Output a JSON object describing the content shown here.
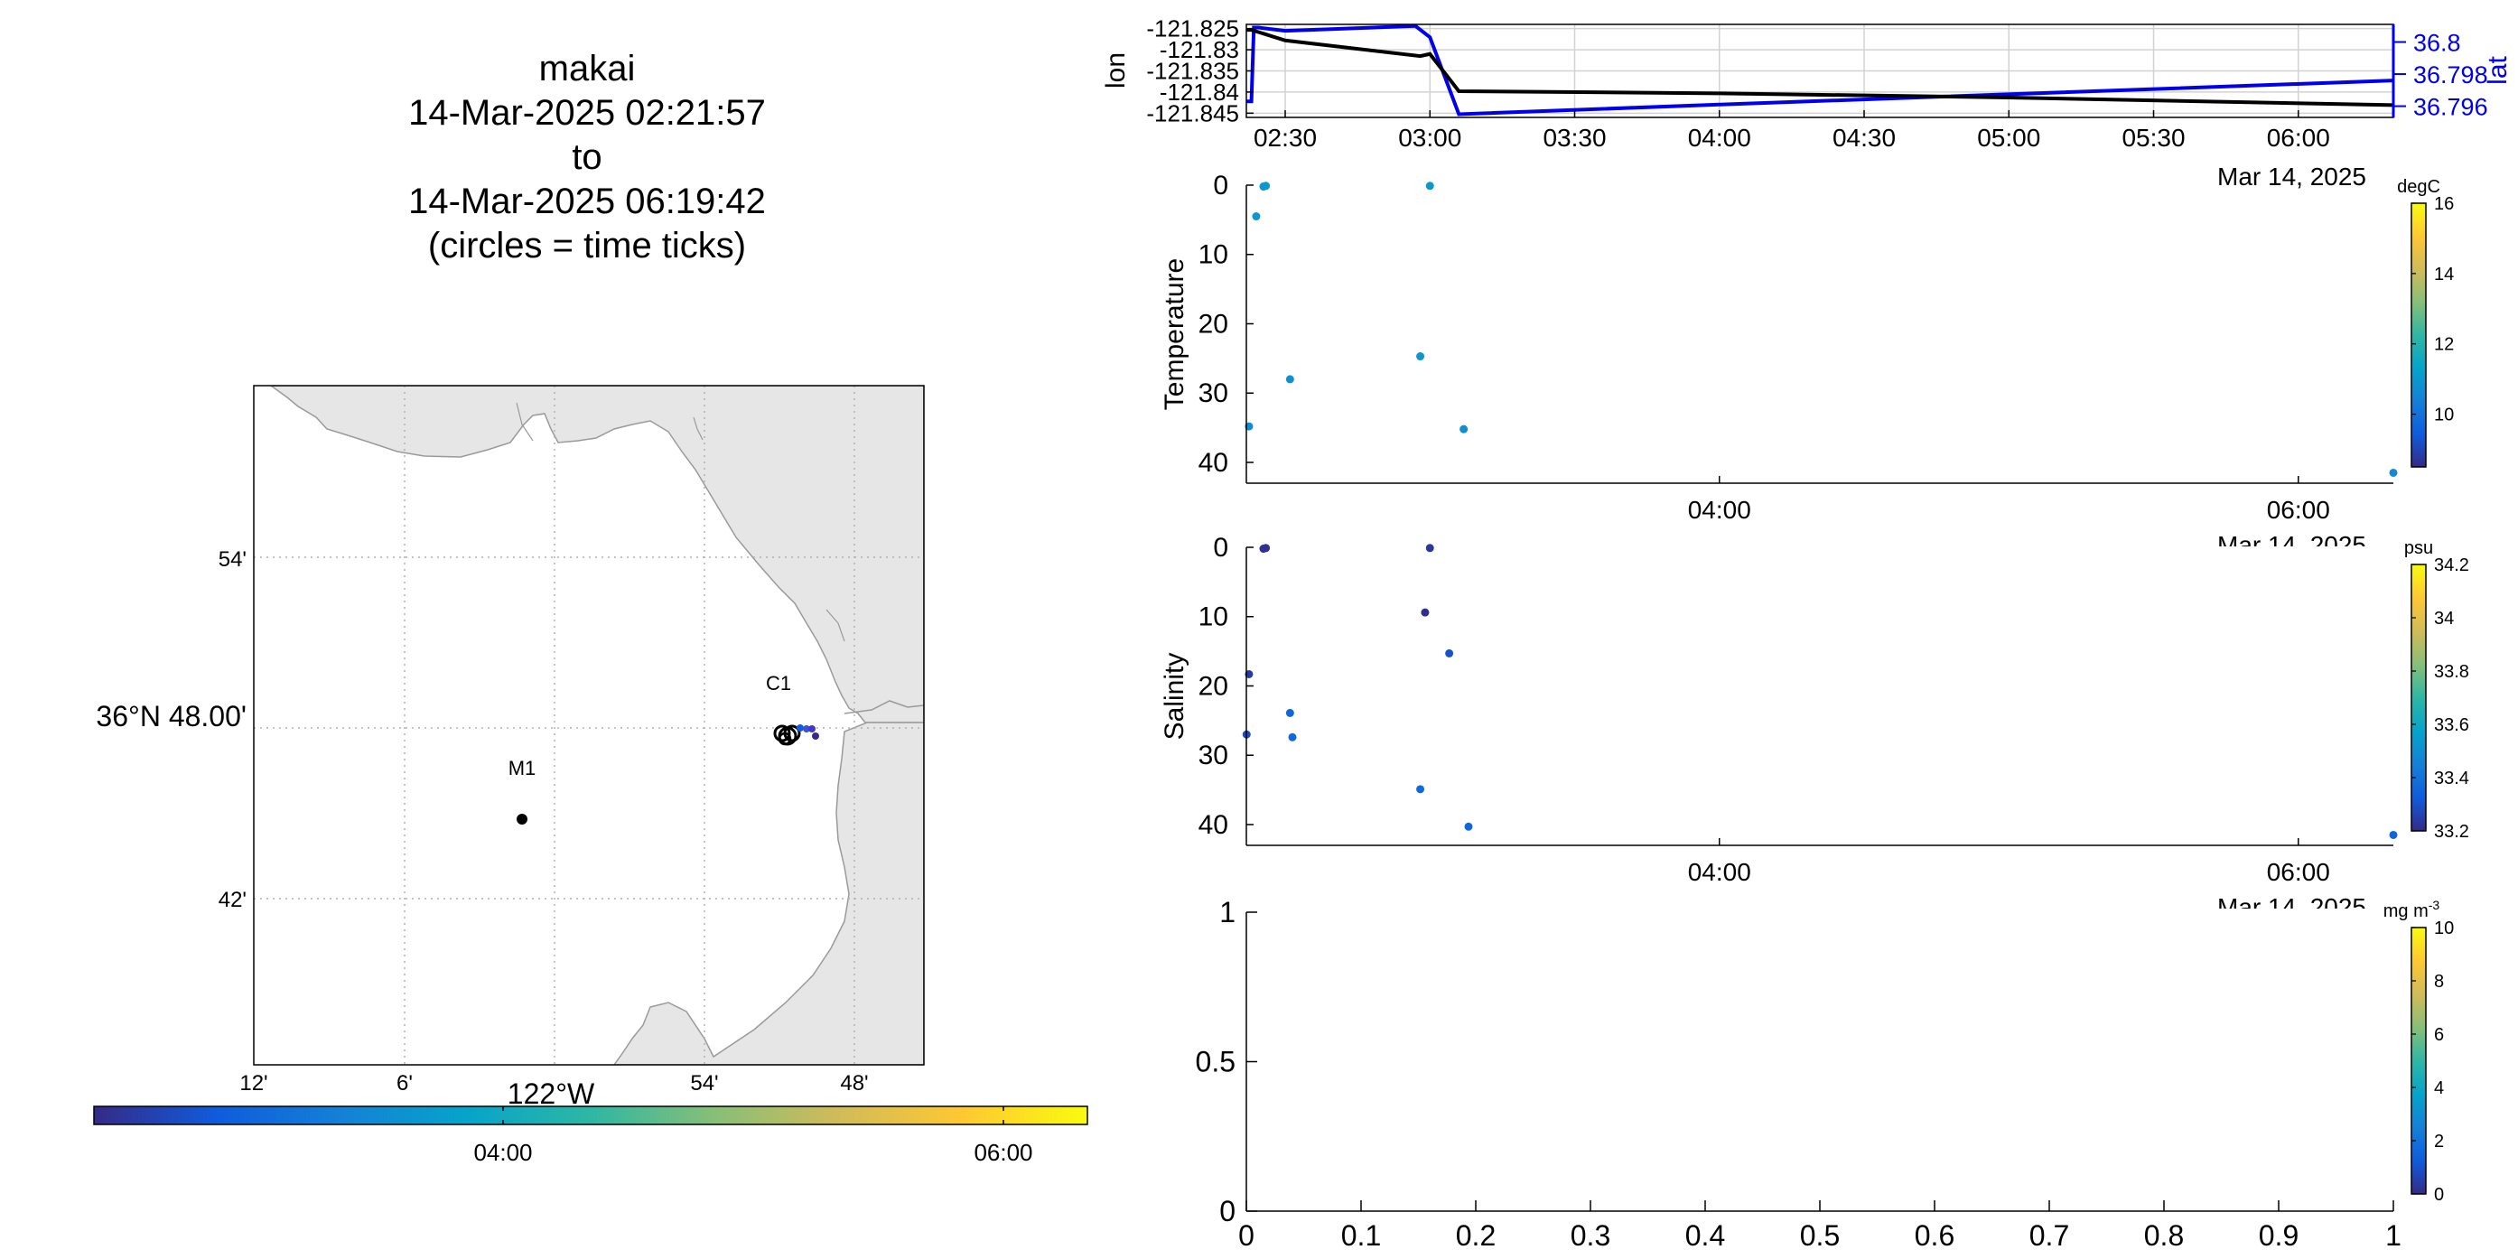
{
  "title": {
    "vehicle": "makai",
    "start": "14-Mar-2025 02:21:57",
    "to": "to",
    "end": "14-Mar-2025 06:19:42",
    "note": "(circles = time ticks)"
  },
  "colors": {
    "track_lon": "#000000",
    "track_lat": "#0000ee",
    "land": "#e6e6e6",
    "coast": "#9a9a9a",
    "grid": "#b0b0b0",
    "parula": [
      "#352a87",
      "#0f5cdd",
      "#1481d6",
      "#06a4ca",
      "#2eb7a4",
      "#87bf77",
      "#d1bb59",
      "#fec832",
      "#f9fb0e"
    ]
  },
  "map": {
    "lat_labels": [
      "54'",
      "36°N 48.00'",
      "42'"
    ],
    "lon_labels": [
      "12'",
      "6'",
      "122°W",
      "54'",
      "48'"
    ],
    "stations": [
      {
        "name": "M1",
        "lat": 36.747,
        "lon": -122.022
      },
      {
        "name": "C1",
        "lat": 36.797,
        "lon": -121.847
      }
    ],
    "colorbar_ticks": [
      "04:00",
      "06:00"
    ]
  },
  "chart_data": [
    {
      "type": "line",
      "name": "track",
      "xlabel": "",
      "ylabel": "lon",
      "y2label": "lat",
      "date_label": "Mar 14, 2025",
      "x_ticks": [
        "02:30",
        "03:00",
        "03:30",
        "04:00",
        "04:30",
        "05:00",
        "05:30",
        "06:00"
      ],
      "y_ticks": [
        "-121.825",
        "-121.83",
        "-121.835",
        "-121.84",
        "-121.845"
      ],
      "y2_ticks": [
        "36.8",
        "36.798",
        "36.796"
      ],
      "ylim": [
        -121.846,
        -121.824
      ],
      "y2lim": [
        36.7953,
        36.8011
      ],
      "series": [
        {
          "name": "lon",
          "x": [
            "02:21:57",
            "02:23:00",
            "02:30:00",
            "02:58:00",
            "03:00:00",
            "03:06:00",
            "04:00:00",
            "05:00:00",
            "06:19:42"
          ],
          "values": [
            -121.8253,
            -121.8253,
            -121.8278,
            -121.8315,
            -121.831,
            -121.8398,
            -121.8403,
            -121.8413,
            -121.8431
          ]
        },
        {
          "name": "lat",
          "x": [
            "02:21:57",
            "02:23:00",
            "02:23:30",
            "02:24:30",
            "02:30:00",
            "02:57:00",
            "03:00:00",
            "03:06:00",
            "04:00:00",
            "06:19:42"
          ],
          "values": [
            36.7963,
            36.7963,
            36.8009,
            36.8009,
            36.8007,
            36.801,
            36.8003,
            36.7955,
            36.7961,
            36.7976
          ]
        }
      ]
    },
    {
      "type": "scatter",
      "name": "temperature",
      "ylabel": "Temperature",
      "units": "degC",
      "x_ticks": [
        "04:00",
        "06:00"
      ],
      "date_label": "Mar 14, 2025",
      "y_ticks": [
        "0",
        "10",
        "20",
        "30",
        "40"
      ],
      "ylim": [
        0,
        43
      ],
      "clim": [
        8.5,
        16
      ],
      "colorbar_ticks": [
        "16",
        "14",
        "12",
        "10"
      ],
      "points": [
        {
          "t": "02:22:30",
          "depth": 34.8,
          "value": 10.7
        },
        {
          "t": "02:24:00",
          "depth": 4.5,
          "value": 11.0
        },
        {
          "t": "02:25:30",
          "depth": 0.2,
          "value": 11.0
        },
        {
          "t": "02:26:00",
          "depth": 0.1,
          "value": 11.0
        },
        {
          "t": "02:31:00",
          "depth": 28.0,
          "value": 10.8
        },
        {
          "t": "02:58:00",
          "depth": 24.7,
          "value": 10.9
        },
        {
          "t": "03:00:00",
          "depth": 0.1,
          "value": 11.0
        },
        {
          "t": "03:07:00",
          "depth": 35.2,
          "value": 10.7
        },
        {
          "t": "06:19:42",
          "depth": 41.5,
          "value": 10.6
        }
      ]
    },
    {
      "type": "scatter",
      "name": "salinity",
      "ylabel": "Salinity",
      "units": "psu",
      "x_ticks": [
        "04:00",
        "06:00"
      ],
      "date_label": "Mar 14, 2025",
      "y_ticks": [
        "0",
        "10",
        "20",
        "30",
        "40"
      ],
      "ylim": [
        0,
        43
      ],
      "clim": [
        33.2,
        34.2
      ],
      "colorbar_ticks": [
        "34.2",
        "34",
        "33.8",
        "33.6",
        "33.4",
        "33.2"
      ],
      "points": [
        {
          "t": "02:22:00",
          "depth": 27.0,
          "value": 33.28
        },
        {
          "t": "02:22:30",
          "depth": 18.3,
          "value": 33.24
        },
        {
          "t": "02:25:30",
          "depth": 0.2,
          "value": 33.22
        },
        {
          "t": "02:26:00",
          "depth": 0.1,
          "value": 33.22
        },
        {
          "t": "02:31:00",
          "depth": 23.9,
          "value": 33.36
        },
        {
          "t": "02:31:30",
          "depth": 27.4,
          "value": 33.37
        },
        {
          "t": "02:58:00",
          "depth": 34.9,
          "value": 33.37
        },
        {
          "t": "02:59:00",
          "depth": 9.4,
          "value": 33.21
        },
        {
          "t": "03:00:00",
          "depth": 0.1,
          "value": 33.23
        },
        {
          "t": "03:04:00",
          "depth": 15.3,
          "value": 33.3
        },
        {
          "t": "03:08:00",
          "depth": 40.3,
          "value": 33.36
        },
        {
          "t": "06:19:42",
          "depth": 41.5,
          "value": 33.36
        }
      ]
    },
    {
      "type": "scatter",
      "name": "empty",
      "ylabel": "",
      "units": "mg m-3",
      "x_ticks": [
        "0",
        "0.1",
        "0.2",
        "0.3",
        "0.4",
        "0.5",
        "0.6",
        "0.7",
        "0.8",
        "0.9",
        "1"
      ],
      "y_ticks": [
        "0",
        "0.5",
        "1"
      ],
      "ylim": [
        0,
        1
      ],
      "xlim": [
        0,
        1
      ],
      "clim": [
        0,
        10
      ],
      "colorbar_ticks": [
        "10",
        "8",
        "6",
        "4",
        "2",
        "0"
      ],
      "points": []
    }
  ]
}
